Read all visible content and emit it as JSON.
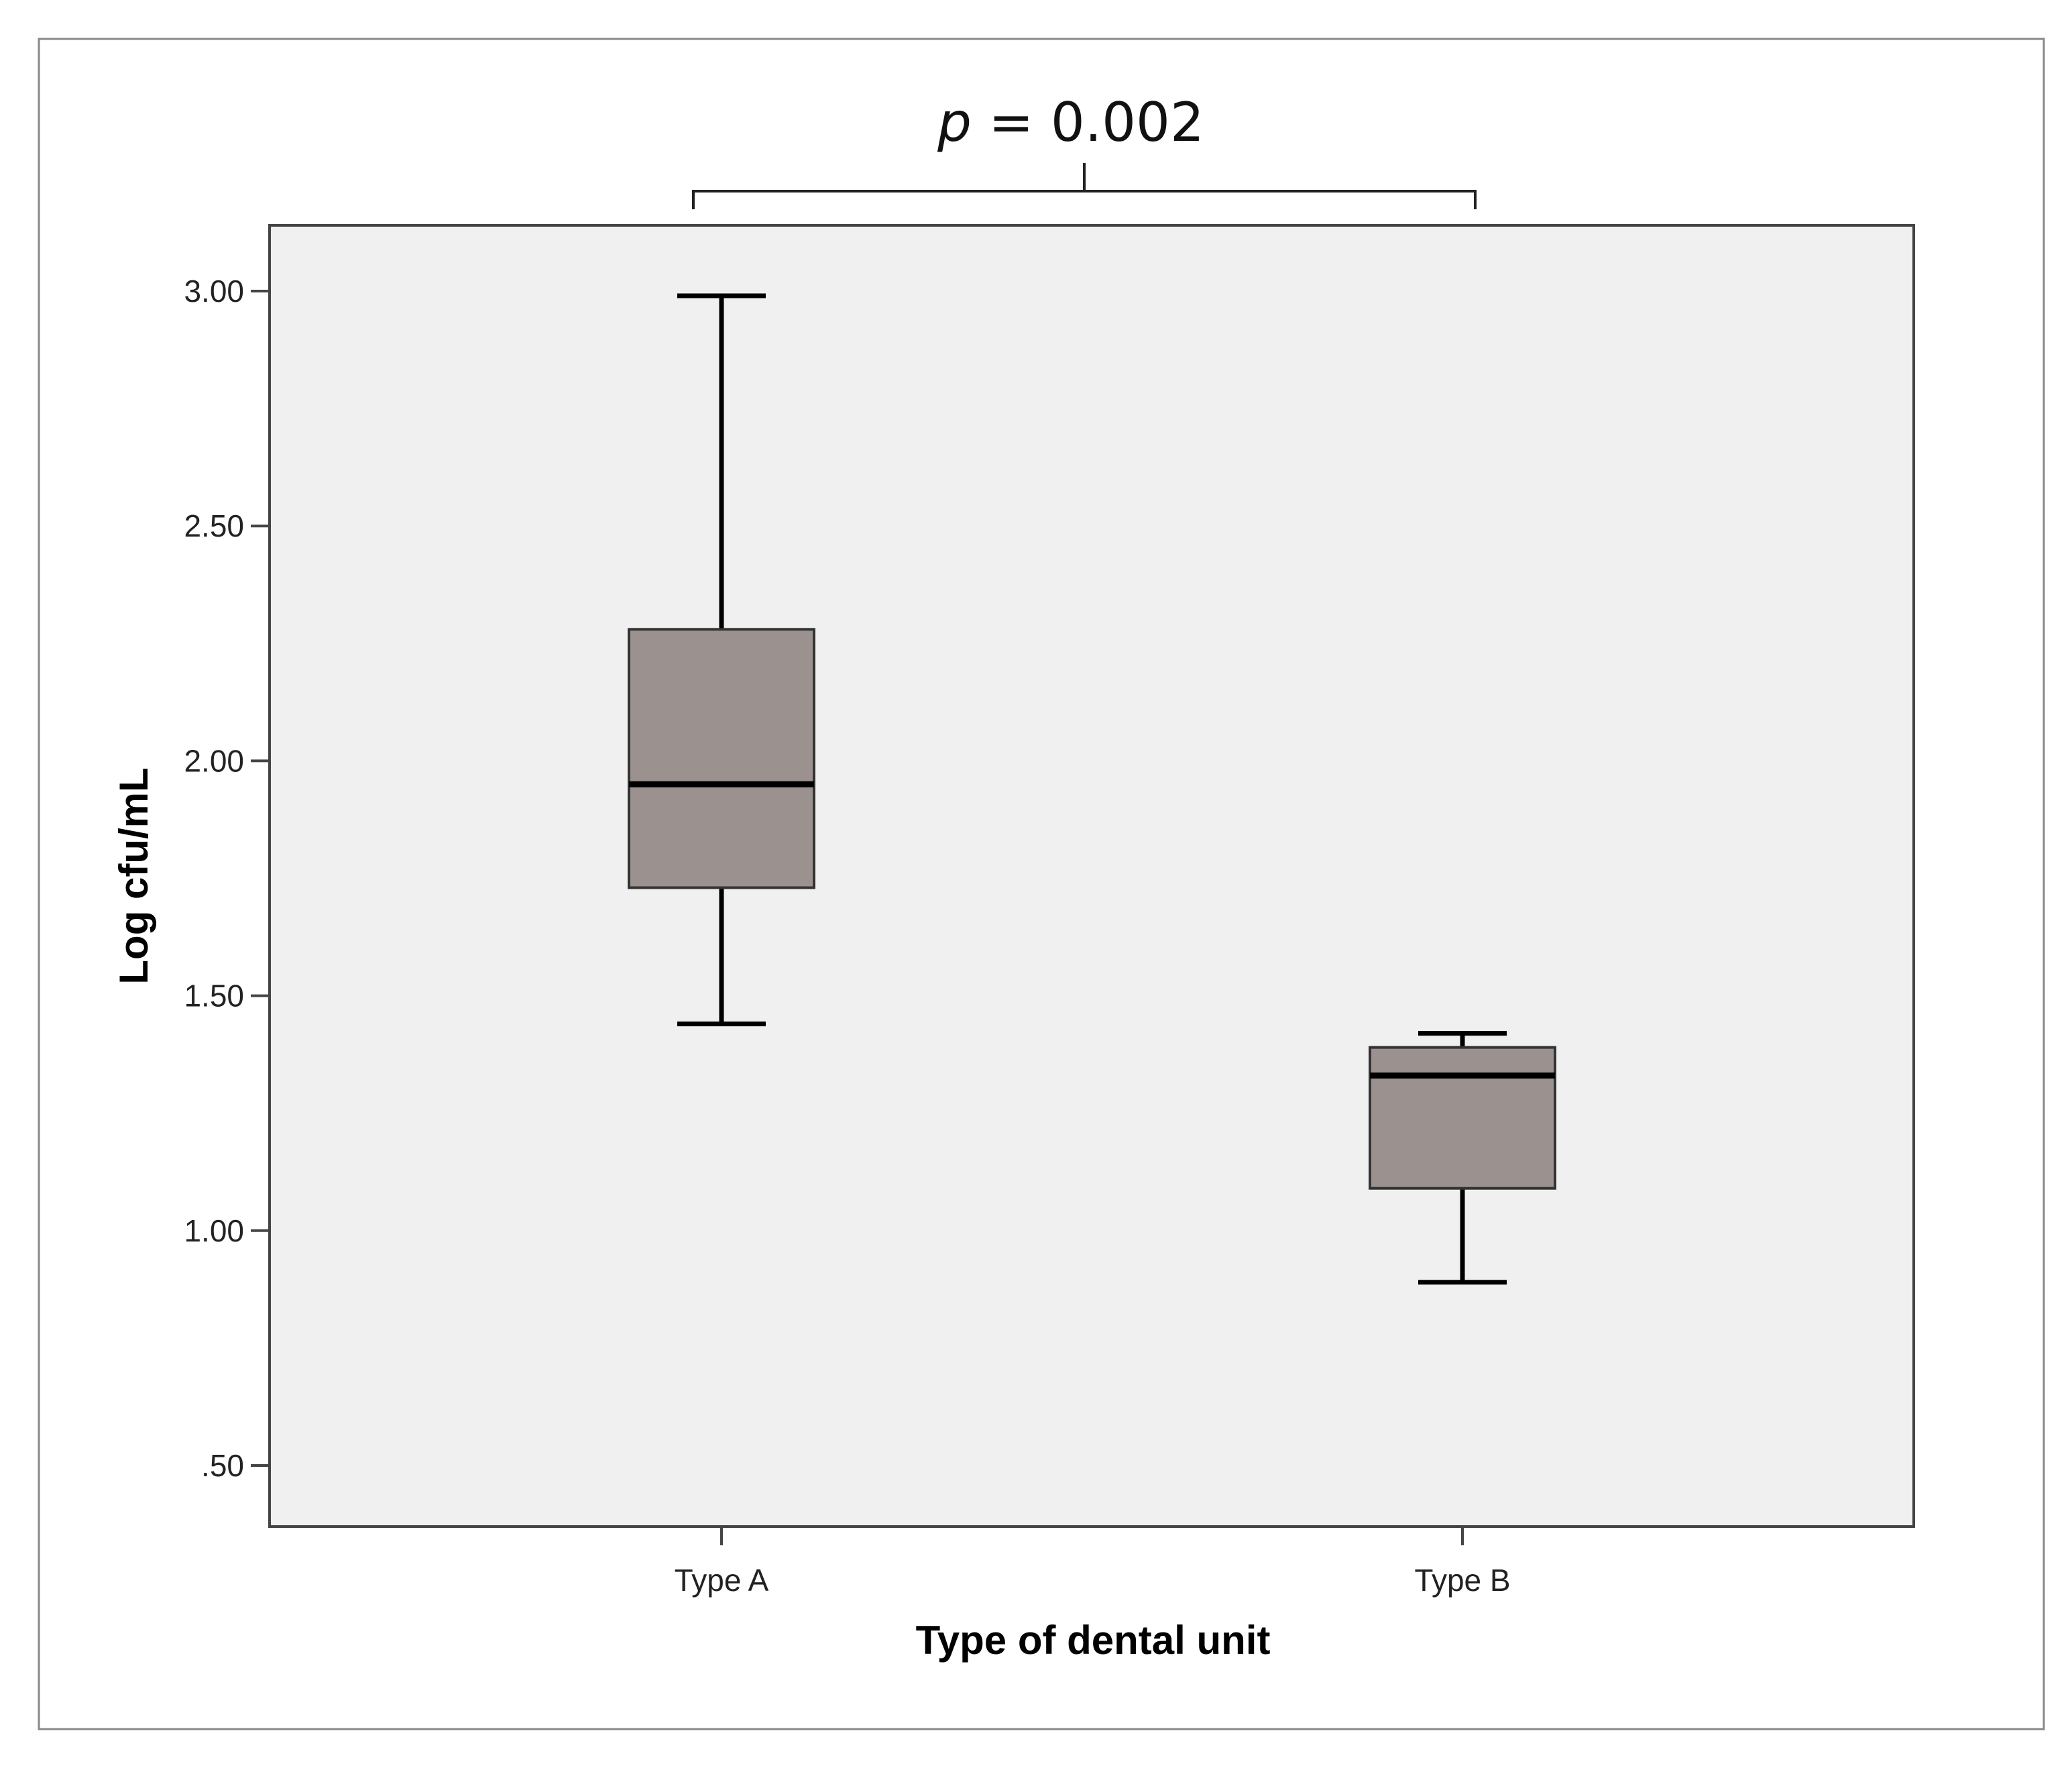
{
  "chart_data": {
    "type": "box",
    "xlabel": "Type of dental unit",
    "ylabel": "Log cfu/mL",
    "ylim": [
      0.37,
      3.14
    ],
    "yticks": [
      {
        "value": 0.5,
        "label": ".50"
      },
      {
        "value": 1.0,
        "label": "1.00"
      },
      {
        "value": 1.5,
        "label": "1.50"
      },
      {
        "value": 2.0,
        "label": "2.00"
      },
      {
        "value": 2.5,
        "label": "2.50"
      },
      {
        "value": 3.0,
        "label": "3.00"
      }
    ],
    "categories": [
      "Type A",
      "Type B"
    ],
    "boxes": [
      {
        "category": "Type A",
        "min": 1.44,
        "q1": 1.73,
        "median": 1.95,
        "q3": 2.28,
        "max": 2.99
      },
      {
        "category": "Type B",
        "min": 0.89,
        "q1": 1.09,
        "median": 1.33,
        "q3": 1.39,
        "max": 1.42
      }
    ],
    "annotation": {
      "p_symbol": "p",
      "p_text": " = 0.002"
    },
    "grid": false,
    "colors": {
      "box_fill": "#9b9290",
      "plot_background": "#f0f0f0",
      "frame": "#444444"
    }
  }
}
